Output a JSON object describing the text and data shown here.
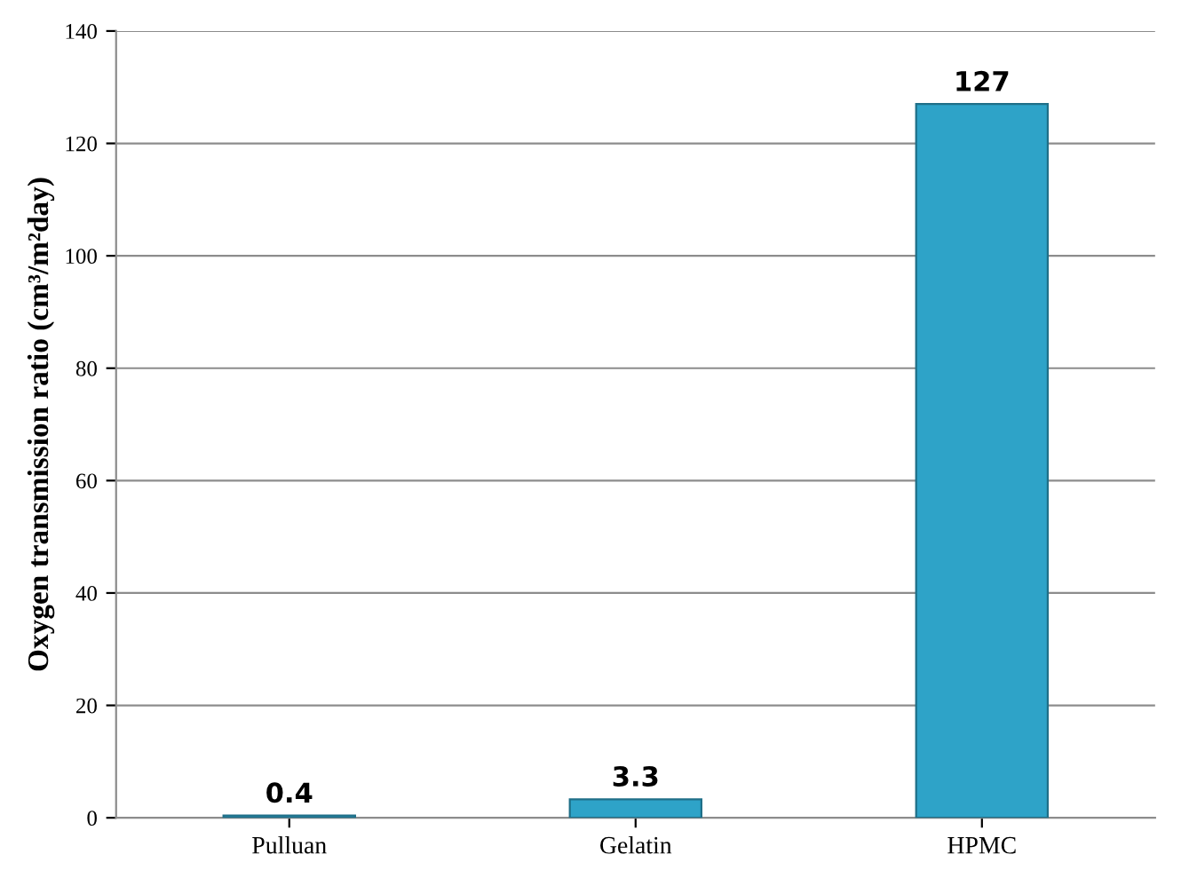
{
  "chart_data": {
    "type": "bar",
    "ylabel": "Oxygen transmission ratio (cm³/m²day)",
    "categories": [
      "Pulluan",
      "Gelatin",
      "HPMC"
    ],
    "values": [
      0.4,
      3.3,
      127
    ],
    "color": "#2ea3c8",
    "ylim": [
      0,
      140
    ],
    "yticks": [
      0,
      20,
      40,
      60,
      80,
      100,
      120,
      140
    ],
    "grid": "y",
    "data_labels": true
  }
}
